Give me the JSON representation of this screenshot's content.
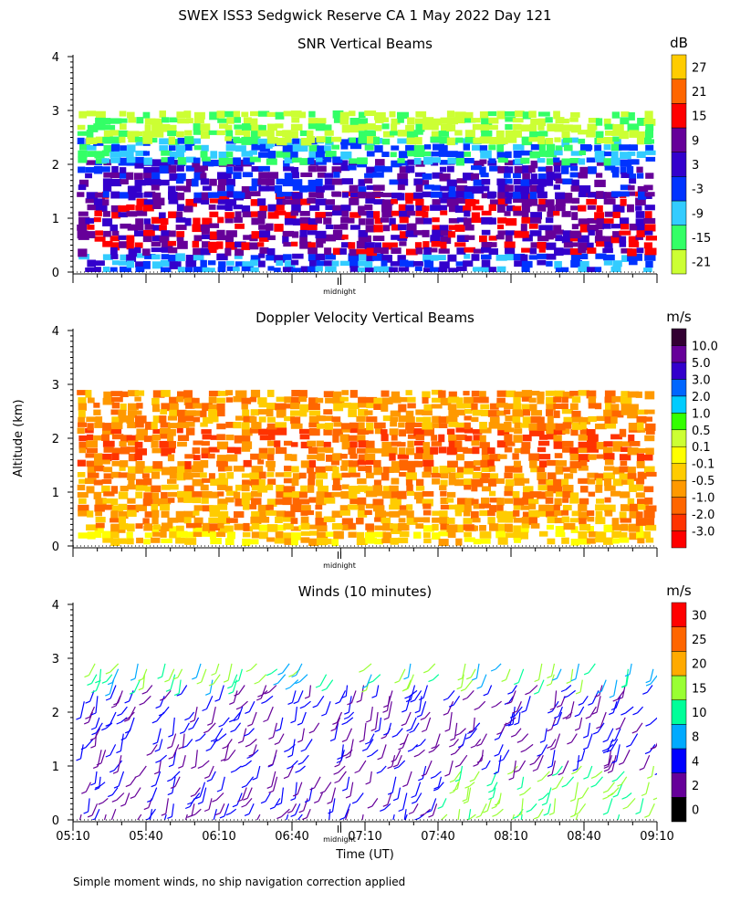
{
  "title": "SWEX ISS3 Sedgwick Reserve CA   1 May 2022 Day 121",
  "footer_note": "Simple moment winds, no ship navigation correction applied",
  "colors": {
    "snr": [
      "#ccff33",
      "#33ff66",
      "#33ccff",
      "#0033ff",
      "#3300cc",
      "#660099",
      "#ff0000",
      "#ff6600",
      "#ffcc00"
    ],
    "doppler": [
      "#ff0000",
      "#ff3300",
      "#ff6600",
      "#ff9900",
      "#ffcc00",
      "#ffff00",
      "#ccff33",
      "#33ff00",
      "#00ccff",
      "#0066ff",
      "#3300cc",
      "#660099",
      "#330033"
    ],
    "winds": [
      "#000000",
      "#660099",
      "#0000ff",
      "#00aaff",
      "#00ff99",
      "#99ff33",
      "#ffaa00",
      "#ff6600",
      "#ff0000"
    ]
  },
  "chart_data": [
    {
      "type": "heatmap",
      "title": "SNR Vertical Beams",
      "ylim": [
        0,
        4
      ],
      "y_ticks": [
        "0",
        "1",
        "2",
        "3",
        "4"
      ],
      "x_marker_label": "midnight",
      "colorbar_unit": "dB",
      "colorbar_labels": [
        "-21",
        "-15",
        "-9",
        "-3",
        "3",
        "9",
        "15",
        "21",
        "27"
      ],
      "layers": [
        {
          "altitude_range": [
            0.1,
            0.35
          ],
          "color_level": "-3"
        },
        {
          "altitude_range": [
            0.35,
            0.7
          ],
          "color_level": "9"
        },
        {
          "altitude_range": [
            0.7,
            1.5
          ],
          "color_level": "9"
        },
        {
          "altitude_range": [
            1.5,
            2.1
          ],
          "color_level": "3"
        },
        {
          "altitude_range": [
            2.1,
            2.5
          ],
          "color_level": "-9"
        },
        {
          "altitude_range": [
            2.5,
            3.0
          ],
          "color_level": "-21"
        }
      ]
    },
    {
      "type": "heatmap",
      "title": "Doppler Velocity Vertical Beams",
      "ylabel": "Altitude (km)",
      "ylim": [
        0,
        4
      ],
      "y_ticks": [
        "0",
        "1",
        "2",
        "3",
        "4"
      ],
      "x_marker_label": "midnight",
      "colorbar_unit": "m/s",
      "colorbar_labels": [
        "-3.0",
        "-2.0",
        "-1.0",
        "-0.5",
        "-0.1",
        "0.1",
        "0.5",
        "1.0",
        "2.0",
        "3.0",
        "5.0",
        "10.0"
      ],
      "layers": [
        {
          "altitude_range": [
            0.1,
            0.4
          ],
          "color_level": "-0.1"
        },
        {
          "altitude_range": [
            0.4,
            1.5
          ],
          "color_level": "-0.5"
        },
        {
          "altitude_range": [
            1.5,
            2.2
          ],
          "color_level": "-1.0"
        },
        {
          "altitude_range": [
            2.2,
            2.9
          ],
          "color_level": "-0.5"
        }
      ]
    },
    {
      "type": "scatter",
      "title": "Winds (10 minutes)",
      "xlabel": "Time (UT)",
      "ylim": [
        0,
        4
      ],
      "y_ticks": [
        "0",
        "1",
        "2",
        "3",
        "4"
      ],
      "x_ticks": [
        "05:10",
        "05:40",
        "06:10",
        "06:40",
        "07:10",
        "07:40",
        "08:10",
        "08:40",
        "09:10"
      ],
      "x_marker_label": "midnight",
      "colorbar_unit": "m/s",
      "colorbar_labels": [
        "0",
        "2",
        "4",
        "8",
        "10",
        "15",
        "20",
        "25",
        "30"
      ],
      "profile_times": [
        "05:10",
        "05:20",
        "05:30",
        "05:40",
        "05:50",
        "06:00",
        "06:10",
        "06:20",
        "06:30",
        "06:40",
        "06:50",
        "07:00",
        "07:10",
        "07:20",
        "07:30",
        "07:40",
        "07:50",
        "08:00",
        "08:10",
        "08:20",
        "08:30",
        "08:40",
        "08:50",
        "09:00"
      ],
      "altitude_range": [
        0.1,
        3.0
      ]
    }
  ]
}
